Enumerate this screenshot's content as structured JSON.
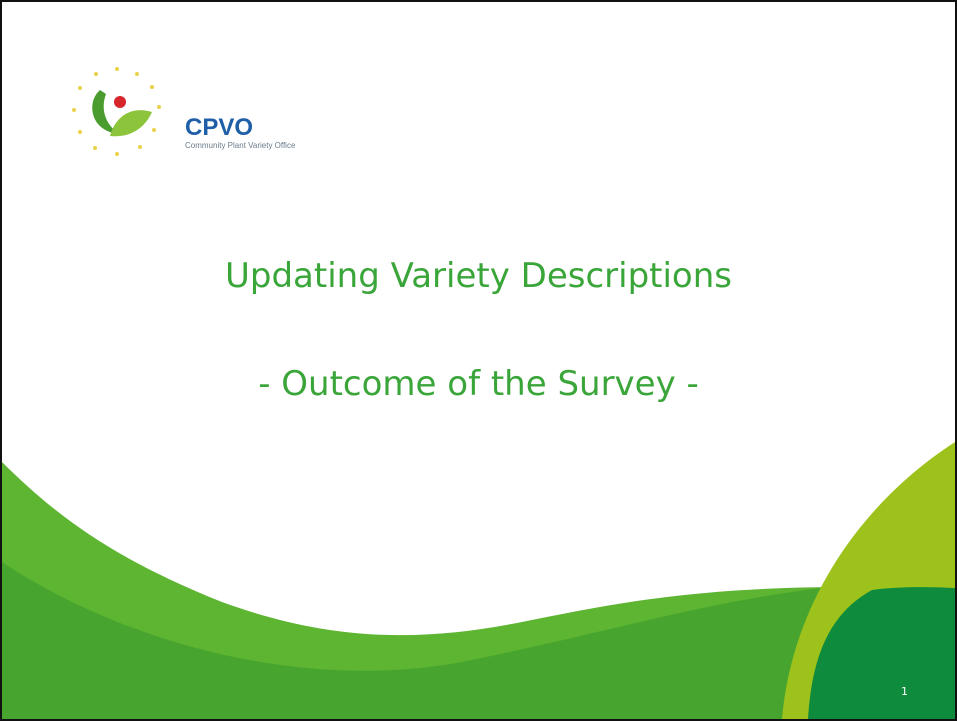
{
  "logo": {
    "name": "CPVO",
    "subtitle": "Community Plant Variety Office"
  },
  "title": "Updating Variety Descriptions",
  "subtitle": "- Outcome of the Survey -",
  "slide_number": "1"
}
